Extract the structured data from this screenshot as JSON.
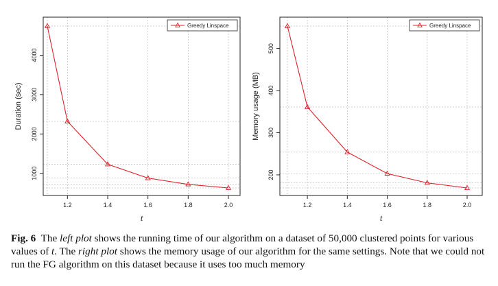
{
  "chart_data": [
    {
      "type": "line",
      "title": "",
      "xlabel": "t",
      "ylabel": "Duration (sec)",
      "x": [
        1.1,
        1.2,
        1.4,
        1.6,
        1.8,
        2.0
      ],
      "x_ticks": [
        "1.2",
        "1.4",
        "1.6",
        "1.8",
        "2.0"
      ],
      "y_ticks": [
        "1000",
        "2000",
        "3000",
        "4000"
      ],
      "xlim": [
        1.1,
        2.0
      ],
      "ylim": [
        630,
        4740
      ],
      "grid": true,
      "legend_position": "top-right",
      "series": [
        {
          "name": "Greedy Linspace",
          "color": "#e0202a",
          "marker": "triangle",
          "values": [
            4740,
            2320,
            1230,
            880,
            720,
            630
          ]
        }
      ]
    },
    {
      "type": "line",
      "title": "",
      "xlabel": "t",
      "ylabel": "Memory usage (MB)",
      "x": [
        1.1,
        1.2,
        1.4,
        1.6,
        1.8,
        2.0
      ],
      "x_ticks": [
        "1.2",
        "1.4",
        "1.6",
        "1.8",
        "2.0"
      ],
      "y_ticks": [
        "200",
        "300",
        "400",
        "500"
      ],
      "xlim": [
        1.1,
        2.0
      ],
      "ylim": [
        169,
        553
      ],
      "grid": true,
      "legend_position": "top-right",
      "series": [
        {
          "name": "Greedy Linspace",
          "color": "#e0202a",
          "marker": "triangle",
          "values": [
            553,
            361,
            254,
            203,
            181,
            169
          ]
        }
      ]
    }
  ],
  "caption": {
    "label": "Fig. 6",
    "text_1": "The ",
    "left_plot": "left plot",
    "text_2": " shows the running time of our algorithm on a dataset of 50,000 clustered points for various values of ",
    "t": "t",
    "text_3": ". The ",
    "right_plot": "right plot",
    "text_4": " shows the memory usage of our algorithm for the same settings. Note that we could not run the FG algorithm on this dataset because it uses too much memory"
  }
}
